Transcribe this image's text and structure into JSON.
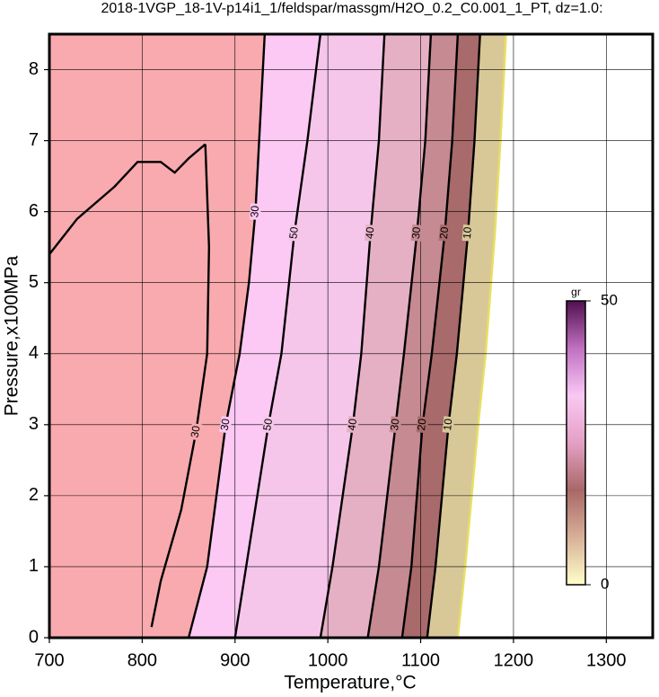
{
  "chart_data": {
    "type": "contour",
    "title": "2018-1VGP_18-1V-p14i1_1/feldspar/massgm/H2O_0.2_C0.001_1_PT, dz=1.0:",
    "x_label": "Temperature,°C",
    "y_label": "Pressure,x100MPa",
    "xlim": [
      700,
      1350
    ],
    "ylim": [
      0,
      8.5
    ],
    "xticks": [
      700,
      800,
      900,
      1000,
      1100,
      1200,
      1300
    ],
    "yticks": [
      0,
      1,
      2,
      3,
      4,
      5,
      6,
      7,
      8
    ],
    "grid": true,
    "background": "#f8aaae",
    "colorbar": {
      "label": "gr",
      "lim": [
        0,
        50
      ],
      "ticks": [
        0,
        50
      ],
      "colors": [
        "#ffffc8",
        "#d8b098",
        "#a86868",
        "#e4a0c4",
        "#f8c8f4",
        "#c070c0",
        "#501050"
      ]
    },
    "contours": [
      {
        "level": 30,
        "color": "#000000",
        "fill": "#fcc8f4",
        "x": [
          850,
          870,
          880,
          890,
          905,
          915,
          922,
          926,
          932
        ],
        "y": [
          0,
          1,
          2,
          3,
          4,
          5,
          6,
          7,
          8.5
        ]
      },
      {
        "level": 30,
        "color": "#000000",
        "x": [
          810,
          820,
          842,
          858,
          870,
          872,
          868
        ],
        "y": [
          0.15,
          0.8,
          1.8,
          2.9,
          4,
          5.5,
          6.95
        ]
      },
      {
        "level": 30,
        "color": "#000000",
        "x": [
          700,
          730,
          770,
          795,
          820,
          835,
          850,
          868
        ],
        "y": [
          5.4,
          5.9,
          6.35,
          6.7,
          6.7,
          6.55,
          6.75,
          6.95
        ]
      },
      {
        "level": 50,
        "color": "#000000",
        "fill": "#f6c6ea",
        "x": [
          900,
          912,
          924,
          936,
          950,
          964,
          978,
          992
        ],
        "y": [
          0,
          1,
          2,
          3,
          4,
          5.7,
          7,
          8.5
        ]
      },
      {
        "level": 40,
        "color": "#000000",
        "fill": "#e6b0c4",
        "x": [
          992,
          1005,
          1016,
          1027,
          1036,
          1046,
          1055,
          1061
        ],
        "y": [
          0,
          1,
          2,
          3,
          4,
          5.7,
          7,
          8.5
        ]
      },
      {
        "level": 30,
        "color": "#000000",
        "fill": "#c68a92",
        "x": [
          1043,
          1055,
          1064,
          1073,
          1082,
          1096,
          1105,
          1111
        ],
        "y": [
          0,
          1,
          2,
          3,
          4,
          5.7,
          7,
          8.5
        ]
      },
      {
        "level": 20,
        "color": "#000000",
        "fill": "#a86a6a",
        "x": [
          1080,
          1090,
          1096,
          1102,
          1112,
          1126,
          1134,
          1140
        ],
        "y": [
          0,
          1,
          2,
          3,
          4,
          5.7,
          7,
          8.5
        ]
      },
      {
        "level": 10,
        "color": "#000000",
        "fill": "#d8c898",
        "x": [
          1107,
          1116,
          1123,
          1130,
          1139,
          1151,
          1158,
          1164
        ],
        "y": [
          0,
          1,
          2,
          3,
          4,
          5.7,
          7,
          8.5
        ]
      },
      {
        "level": 0,
        "color": "#e8e060",
        "fill": "#ffffff",
        "x": [
          1140,
          1148,
          1155,
          1162,
          1170,
          1180,
          1186,
          1192
        ],
        "y": [
          0,
          1,
          2,
          3,
          4,
          5.7,
          7,
          8.5
        ]
      }
    ]
  }
}
